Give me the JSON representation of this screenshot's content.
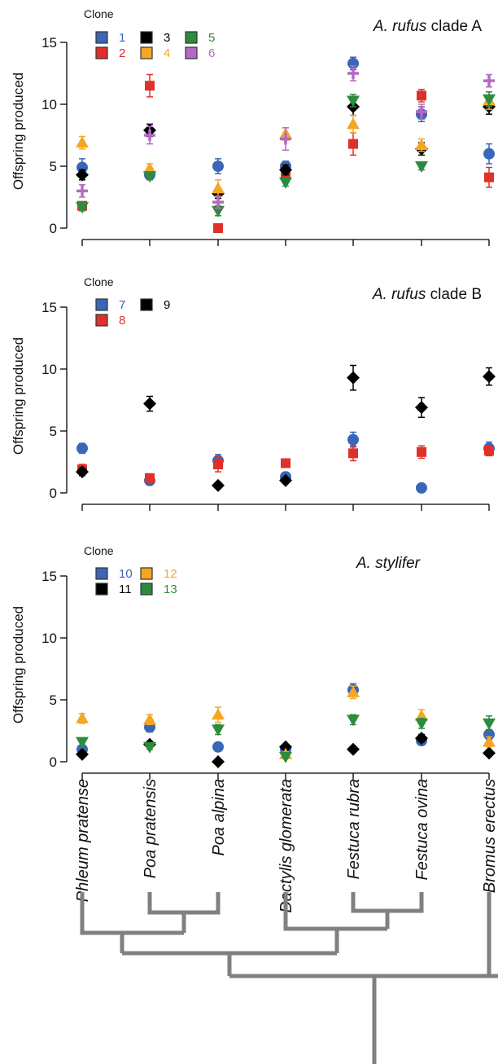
{
  "colors": {
    "blue": "#3a66b7",
    "red": "#e0302a",
    "black": "#000000",
    "orange": "#f5a623",
    "green": "#2e8b3e",
    "purple": "#b36ac3",
    "axis": "#000000",
    "tree": "#808080"
  },
  "x_categories": [
    "Phleum pratense",
    "Poa pratensis",
    "Poa alpina",
    "Dactylis glomerata",
    "Festuca rubra",
    "Festuca ovina",
    "Bromus erectus"
  ],
  "legend_header": "Clone",
  "chart_data": [
    {
      "type": "scatter",
      "title_italic": "A. rufus",
      "title_rest": " clade A",
      "ylabel": "Offspring produced",
      "ylim": [
        0,
        15
      ],
      "yticks": [
        "0",
        "5",
        "10",
        "15"
      ],
      "legend_rows": [
        [
          "1",
          "3",
          "5"
        ],
        [
          "2",
          "4",
          "6"
        ]
      ],
      "series": [
        {
          "name": "1",
          "marker": "circle",
          "color": "blue",
          "values": [
            4.9,
            4.3,
            5.0,
            5.0,
            13.3,
            9.2,
            6.0
          ],
          "err": [
            0.7,
            0.3,
            0.6,
            0.4,
            0.5,
            0.6,
            0.8
          ]
        },
        {
          "name": "2",
          "marker": "square",
          "color": "red",
          "values": [
            1.8,
            11.5,
            0.0,
            4.3,
            6.8,
            10.7,
            4.1
          ],
          "err": [
            0.3,
            0.9,
            0.0,
            0.3,
            0.9,
            0.5,
            0.8
          ]
        },
        {
          "name": "3",
          "marker": "diamond",
          "color": "black",
          "values": [
            4.3,
            7.9,
            2.8,
            4.7,
            9.8,
            6.4,
            9.8
          ],
          "err": [
            0.4,
            0.5,
            0.4,
            0.4,
            0.7,
            0.5,
            0.6
          ]
        },
        {
          "name": "4",
          "marker": "triangle-up",
          "color": "orange",
          "values": [
            6.9,
            4.8,
            3.2,
            7.6,
            8.4,
            6.7,
            10.3
          ],
          "err": [
            0.5,
            0.4,
            0.7,
            0.5,
            0.7,
            0.5,
            0.7
          ]
        },
        {
          "name": "5",
          "marker": "triangle-down",
          "color": "green",
          "values": [
            1.7,
            4.2,
            1.4,
            3.7,
            10.3,
            5.0,
            10.4
          ],
          "err": [
            0.3,
            0.3,
            0.4,
            0.3,
            0.5,
            0.3,
            0.6
          ]
        },
        {
          "name": "6",
          "marker": "plus",
          "color": "purple",
          "values": [
            3.0,
            7.5,
            2.1,
            7.2,
            12.5,
            9.4,
            11.9
          ],
          "err": [
            0.5,
            0.7,
            0.5,
            0.9,
            0.6,
            0.6,
            0.5
          ]
        }
      ]
    },
    {
      "type": "scatter",
      "title_italic": "A. rufus",
      "title_rest": " clade B",
      "ylabel": "Offspring produced",
      "ylim": [
        0,
        15
      ],
      "yticks": [
        "0",
        "5",
        "10",
        "15"
      ],
      "legend_rows": [
        [
          "7",
          "9"
        ],
        [
          "8"
        ]
      ],
      "series": [
        {
          "name": "7",
          "marker": "circle",
          "color": "blue",
          "values": [
            3.6,
            1.0,
            2.6,
            1.3,
            4.3,
            0.4,
            3.6
          ],
          "err": [
            0.4,
            0.2,
            0.5,
            0.2,
            0.6,
            0.1,
            0.5
          ]
        },
        {
          "name": "8",
          "marker": "square",
          "color": "red",
          "values": [
            1.9,
            1.2,
            2.3,
            2.4,
            3.2,
            3.3,
            3.4
          ],
          "err": [
            0.4,
            0.2,
            0.6,
            0.3,
            0.6,
            0.5,
            0.4
          ]
        },
        {
          "name": "9",
          "marker": "diamond",
          "color": "black",
          "values": [
            1.7,
            7.2,
            0.6,
            1.0,
            9.3,
            6.9,
            9.4
          ],
          "err": [
            0.3,
            0.6,
            0.1,
            0.2,
            1.0,
            0.8,
            0.7
          ]
        }
      ]
    },
    {
      "type": "scatter",
      "title_italic": "A. stylifer",
      "title_rest": "",
      "ylabel": "Offspring produced",
      "ylim": [
        0,
        15
      ],
      "yticks": [
        "0",
        "5",
        "10",
        "15"
      ],
      "legend_rows": [
        [
          "10",
          "12"
        ],
        [
          "11",
          "13"
        ]
      ],
      "series": [
        {
          "name": "10",
          "marker": "circle",
          "color": "blue",
          "values": [
            1.0,
            2.8,
            1.2,
            1.0,
            5.8,
            1.7,
            2.2
          ],
          "err": [
            0.2,
            0.4,
            0.3,
            0.2,
            0.5,
            0.3,
            0.4
          ]
        },
        {
          "name": "11",
          "marker": "diamond",
          "color": "black",
          "values": [
            0.6,
            1.4,
            0.0,
            1.2,
            1.0,
            1.9,
            0.7
          ],
          "err": [
            0.1,
            0.2,
            0.0,
            0.2,
            0.2,
            0.3,
            0.2
          ]
        },
        {
          "name": "12",
          "marker": "triangle-up",
          "color": "orange",
          "values": [
            3.5,
            3.4,
            3.8,
            0.6,
            5.6,
            3.7,
            1.6
          ],
          "err": [
            0.4,
            0.4,
            0.6,
            0.2,
            0.5,
            0.5,
            0.4
          ]
        },
        {
          "name": "13",
          "marker": "triangle-down",
          "color": "green",
          "values": [
            1.6,
            1.2,
            2.6,
            0.4,
            3.4,
            3.1,
            3.1
          ],
          "err": [
            0.3,
            0.2,
            0.4,
            0.1,
            0.4,
            0.4,
            0.6
          ]
        }
      ]
    }
  ]
}
